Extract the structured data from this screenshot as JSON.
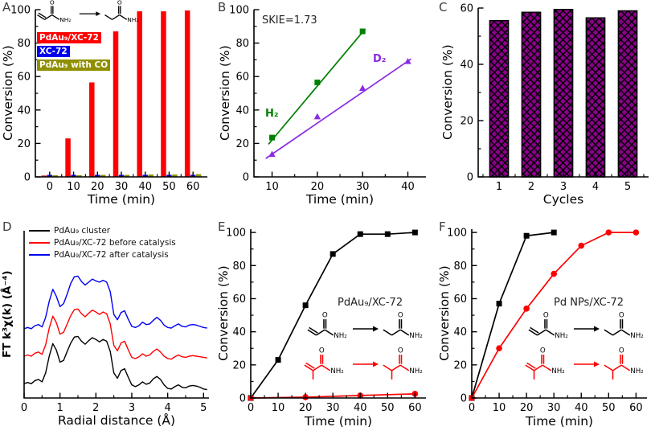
{
  "labels": {
    "O": "O",
    "NH2": "NH₂"
  },
  "panels": {
    "A": {
      "letter": "A",
      "xlabel": "Time (min)",
      "ylabel": "Conversion (%)",
      "schemes": [
        {
          "color": "#000000",
          "reactant": "acrylamide",
          "product": "propanamide"
        }
      ]
    },
    "B": {
      "letter": "B",
      "xlabel": "Time (min)",
      "ylabel": "Conversion (%)",
      "annotation": "SKIE=1.73",
      "label_h2": "H₂",
      "label_d2": "D₂",
      "h2_color": "#008000",
      "d2_color": "#8a2be2"
    },
    "C": {
      "letter": "C",
      "xlabel": "Cycles",
      "ylabel": "Conversion (%)"
    },
    "D": {
      "letter": "D",
      "xlabel": "Radial distance (Å)",
      "ylabel": "FT k³χ(k) (Å⁻⁴)"
    },
    "E": {
      "letter": "E",
      "xlabel": "Time (min)",
      "ylabel": "Conversion (%)",
      "annotation": "PdAu₉/XC-72",
      "schemes": [
        {
          "color": "#000000",
          "reactant": "acrylamide",
          "product": "propanamide"
        },
        {
          "color": "#fe0000",
          "reactant": "methacrylamide",
          "product": "isobutyramide"
        }
      ]
    },
    "F": {
      "letter": "F",
      "xlabel": "Time (min)",
      "ylabel": "Conversion (%)",
      "annotation": "Pd NPs/XC-72",
      "schemes": [
        {
          "color": "#000000",
          "reactant": "acrylamide",
          "product": "propanamide"
        },
        {
          "color": "#fe0000",
          "reactant": "methacrylamide",
          "product": "isobutyramide"
        }
      ]
    }
  },
  "chart_data": [
    {
      "panel": "A",
      "type": "grouped_bar",
      "title": "",
      "xlabel": "Time (min)",
      "ylabel": "Conversion (%)",
      "xmin": -6,
      "xmax": 66,
      "ymin": 0,
      "ymax": 100,
      "xticks": [
        0,
        10,
        20,
        30,
        40,
        50,
        60
      ],
      "xminor": [
        5,
        15,
        25,
        35,
        45,
        55
      ],
      "yticks": [
        0,
        20,
        40,
        60,
        80,
        100
      ],
      "yminor": [
        10,
        30,
        50,
        70,
        90
      ],
      "categories": [
        0,
        10,
        20,
        30,
        40,
        50,
        60
      ],
      "barWidth": 6.5,
      "series": [
        {
          "name": "PdAu₉/XC-72",
          "color": "#fe0000",
          "offset": -7,
          "values": [
            0.8,
            23,
            56.5,
            87,
            99,
            99,
            99.5
          ]
        },
        {
          "name": "XC-72",
          "color": "#0000f0",
          "offset": 0,
          "values": [
            1.2,
            1.2,
            1.2,
            1.2,
            1.2,
            1.2,
            1.2
          ]
        },
        {
          "name": "PdAu₉ with CO",
          "color": "#8f8f00",
          "offset": 7,
          "values": [
            1,
            1,
            1.2,
            1.2,
            1.4,
            1.4,
            1.6
          ]
        }
      ]
    },
    {
      "panel": "B",
      "type": "scatterline",
      "xlabel": "Time (min)",
      "ylabel": "Conversion (%)",
      "annotation": "SKIE=1.73",
      "xmin": 6,
      "xmax": 44,
      "ymin": 0,
      "ymax": 100,
      "xticks": [
        10,
        20,
        30,
        40
      ],
      "xminor": [
        15,
        25,
        35
      ],
      "yticks": [
        0,
        20,
        40,
        60,
        80,
        100
      ],
      "yminor": [
        10,
        30,
        50,
        70,
        90
      ],
      "series": [
        {
          "name": "H₂",
          "color": "#008000",
          "marker": "square",
          "x": [
            10,
            20,
            30
          ],
          "y": [
            23.5,
            56.5,
            87
          ],
          "line": [
            [
              9.2,
              19.5
            ],
            [
              30.6,
              88.5
            ]
          ]
        },
        {
          "name": "D₂",
          "color": "#8a2be2",
          "marker": "triangle",
          "x": [
            10,
            20,
            30,
            40
          ],
          "y": [
            13.5,
            36,
            53,
            69
          ],
          "line": [
            [
              8.6,
              11
            ],
            [
              40.7,
              70.5
            ]
          ]
        }
      ]
    },
    {
      "panel": "C",
      "type": "bar",
      "xlabel": "Cycles",
      "ylabel": "Conversion (%)",
      "xmin": 0.35,
      "xmax": 5.65,
      "ymin": 0,
      "ymax": 60,
      "xticks": [
        1,
        2,
        3,
        4,
        5
      ],
      "xminor": [
        0.5,
        1.5,
        2.5,
        3.5,
        4.5,
        5.5
      ],
      "yticks": [
        0,
        20,
        40,
        60
      ],
      "yminor": [
        10,
        30,
        50
      ],
      "categories": [
        1,
        2,
        3,
        4,
        5
      ],
      "values": [
        55.5,
        58.5,
        59.5,
        56.5,
        59
      ],
      "color": "#8b008b",
      "hatch": true,
      "barWidth": 0.58
    },
    {
      "panel": "D",
      "type": "curves",
      "xlabel": "Radial distance (Å)",
      "ylabel": "FT k³χ(k) (Å⁻⁴)",
      "xmin": 0,
      "xmax": 5.15,
      "ymin": 0,
      "ymax": 14,
      "xticks": [
        0,
        1,
        2,
        3,
        4,
        5
      ],
      "xminor": [
        0.5,
        1.5,
        2.5,
        3.5,
        4.5
      ],
      "yticks": [],
      "x0": 0,
      "dx": 0.1,
      "series": [
        {
          "name": "PdAu₉ cluster",
          "color": "#000000",
          "y": [
            1.2,
            1.3,
            1.2,
            1.45,
            1.55,
            1.35,
            2.1,
            3.5,
            4.55,
            4.0,
            3.0,
            3.15,
            3.9,
            4.6,
            5.1,
            5.15,
            4.75,
            4.5,
            4.8,
            5.05,
            4.9,
            4.7,
            4.9,
            4.75,
            3.9,
            2.1,
            1.65,
            2.3,
            2.45,
            1.75,
            1.1,
            0.95,
            1.1,
            1.35,
            1.15,
            1.25,
            1.6,
            1.8,
            1.55,
            1.1,
            0.8,
            0.75,
            0.95,
            1.1,
            0.9,
            0.85,
            1.0,
            1.05,
            1.0,
            0.9,
            0.75,
            0.7
          ]
        },
        {
          "name": "PdAu₉/XC-72 before catalysis",
          "color": "#fe0000",
          "y": [
            3.5,
            3.6,
            3.5,
            3.75,
            3.85,
            3.65,
            4.45,
            5.85,
            6.85,
            6.3,
            5.35,
            5.5,
            6.2,
            6.9,
            7.4,
            7.45,
            7.05,
            6.8,
            7.1,
            7.35,
            7.2,
            7.0,
            7.2,
            7.05,
            6.2,
            4.4,
            3.95,
            4.6,
            4.75,
            4.05,
            3.4,
            3.3,
            3.45,
            3.7,
            3.5,
            3.6,
            3.9,
            4.1,
            3.85,
            3.5,
            3.3,
            3.25,
            3.45,
            3.6,
            3.45,
            3.4,
            3.5,
            3.55,
            3.5,
            3.45,
            3.4,
            3.35
          ]
        },
        {
          "name": "PdAu₉/XC-72 after catalysis",
          "color": "#0000f0",
          "y": [
            5.8,
            5.9,
            5.8,
            6.05,
            6.15,
            5.95,
            6.75,
            8.1,
            9.1,
            8.5,
            7.65,
            7.9,
            8.7,
            9.6,
            10.15,
            10.2,
            9.75,
            9.45,
            9.7,
            9.95,
            9.8,
            9.7,
            9.85,
            9.7,
            8.9,
            7.0,
            6.55,
            7.15,
            7.3,
            6.6,
            6.0,
            5.9,
            6.05,
            6.35,
            6.15,
            6.2,
            6.5,
            6.75,
            6.5,
            6.1,
            5.9,
            5.85,
            6.05,
            6.2,
            6.0,
            5.95,
            6.1,
            6.15,
            6.1,
            6.0,
            5.9,
            5.85
          ]
        }
      ]
    },
    {
      "panel": "E",
      "type": "scatterline",
      "xlabel": "Time (min)",
      "ylabel": "Conversion (%)",
      "annotation": "PdAu₉/XC-72",
      "xmin": 0,
      "xmax": 64,
      "ymin": 0,
      "ymax": 102,
      "xticks": [
        0,
        10,
        20,
        30,
        40,
        50,
        60
      ],
      "xminor": [
        5,
        15,
        25,
        35,
        45,
        55
      ],
      "yticks": [
        0,
        20,
        40,
        60,
        80,
        100
      ],
      "yminor": [
        10,
        30,
        50,
        70,
        90
      ],
      "series": [
        {
          "name": "acrylamide → propanamide",
          "color": "#000000",
          "marker": "square",
          "connect": true,
          "x": [
            0,
            10,
            20,
            30,
            40,
            50,
            60
          ],
          "y": [
            0,
            23,
            56,
            87,
            99,
            99,
            100
          ]
        },
        {
          "name": "methacrylamide → isobutyramide",
          "color": "#fe0000",
          "marker": "circle",
          "connect": true,
          "x": [
            0,
            20,
            40,
            60
          ],
          "y": [
            0,
            0.5,
            1.5,
            2.5
          ]
        }
      ]
    },
    {
      "panel": "F",
      "type": "scatterline",
      "xlabel": "Time (min)",
      "ylabel": "Conversion (%)",
      "annotation": "Pd NPs/XC-72",
      "xmin": 0,
      "xmax": 64,
      "ymin": 0,
      "ymax": 102,
      "xticks": [
        0,
        10,
        20,
        30,
        40,
        50,
        60
      ],
      "xminor": [
        5,
        15,
        25,
        35,
        45,
        55
      ],
      "yticks": [
        0,
        20,
        40,
        60,
        80,
        100
      ],
      "yminor": [
        10,
        30,
        50,
        70,
        90
      ],
      "series": [
        {
          "name": "acrylamide → propanamide",
          "color": "#000000",
          "marker": "square",
          "connect": true,
          "x": [
            0,
            10,
            20,
            30
          ],
          "y": [
            0,
            57,
            98,
            100
          ]
        },
        {
          "name": "methacrylamide → isobutyramide",
          "color": "#fe0000",
          "marker": "circle",
          "connect": true,
          "x": [
            0,
            10,
            20,
            30,
            40,
            50,
            60
          ],
          "y": [
            0,
            30,
            54,
            75,
            92,
            100,
            100
          ]
        }
      ]
    }
  ]
}
